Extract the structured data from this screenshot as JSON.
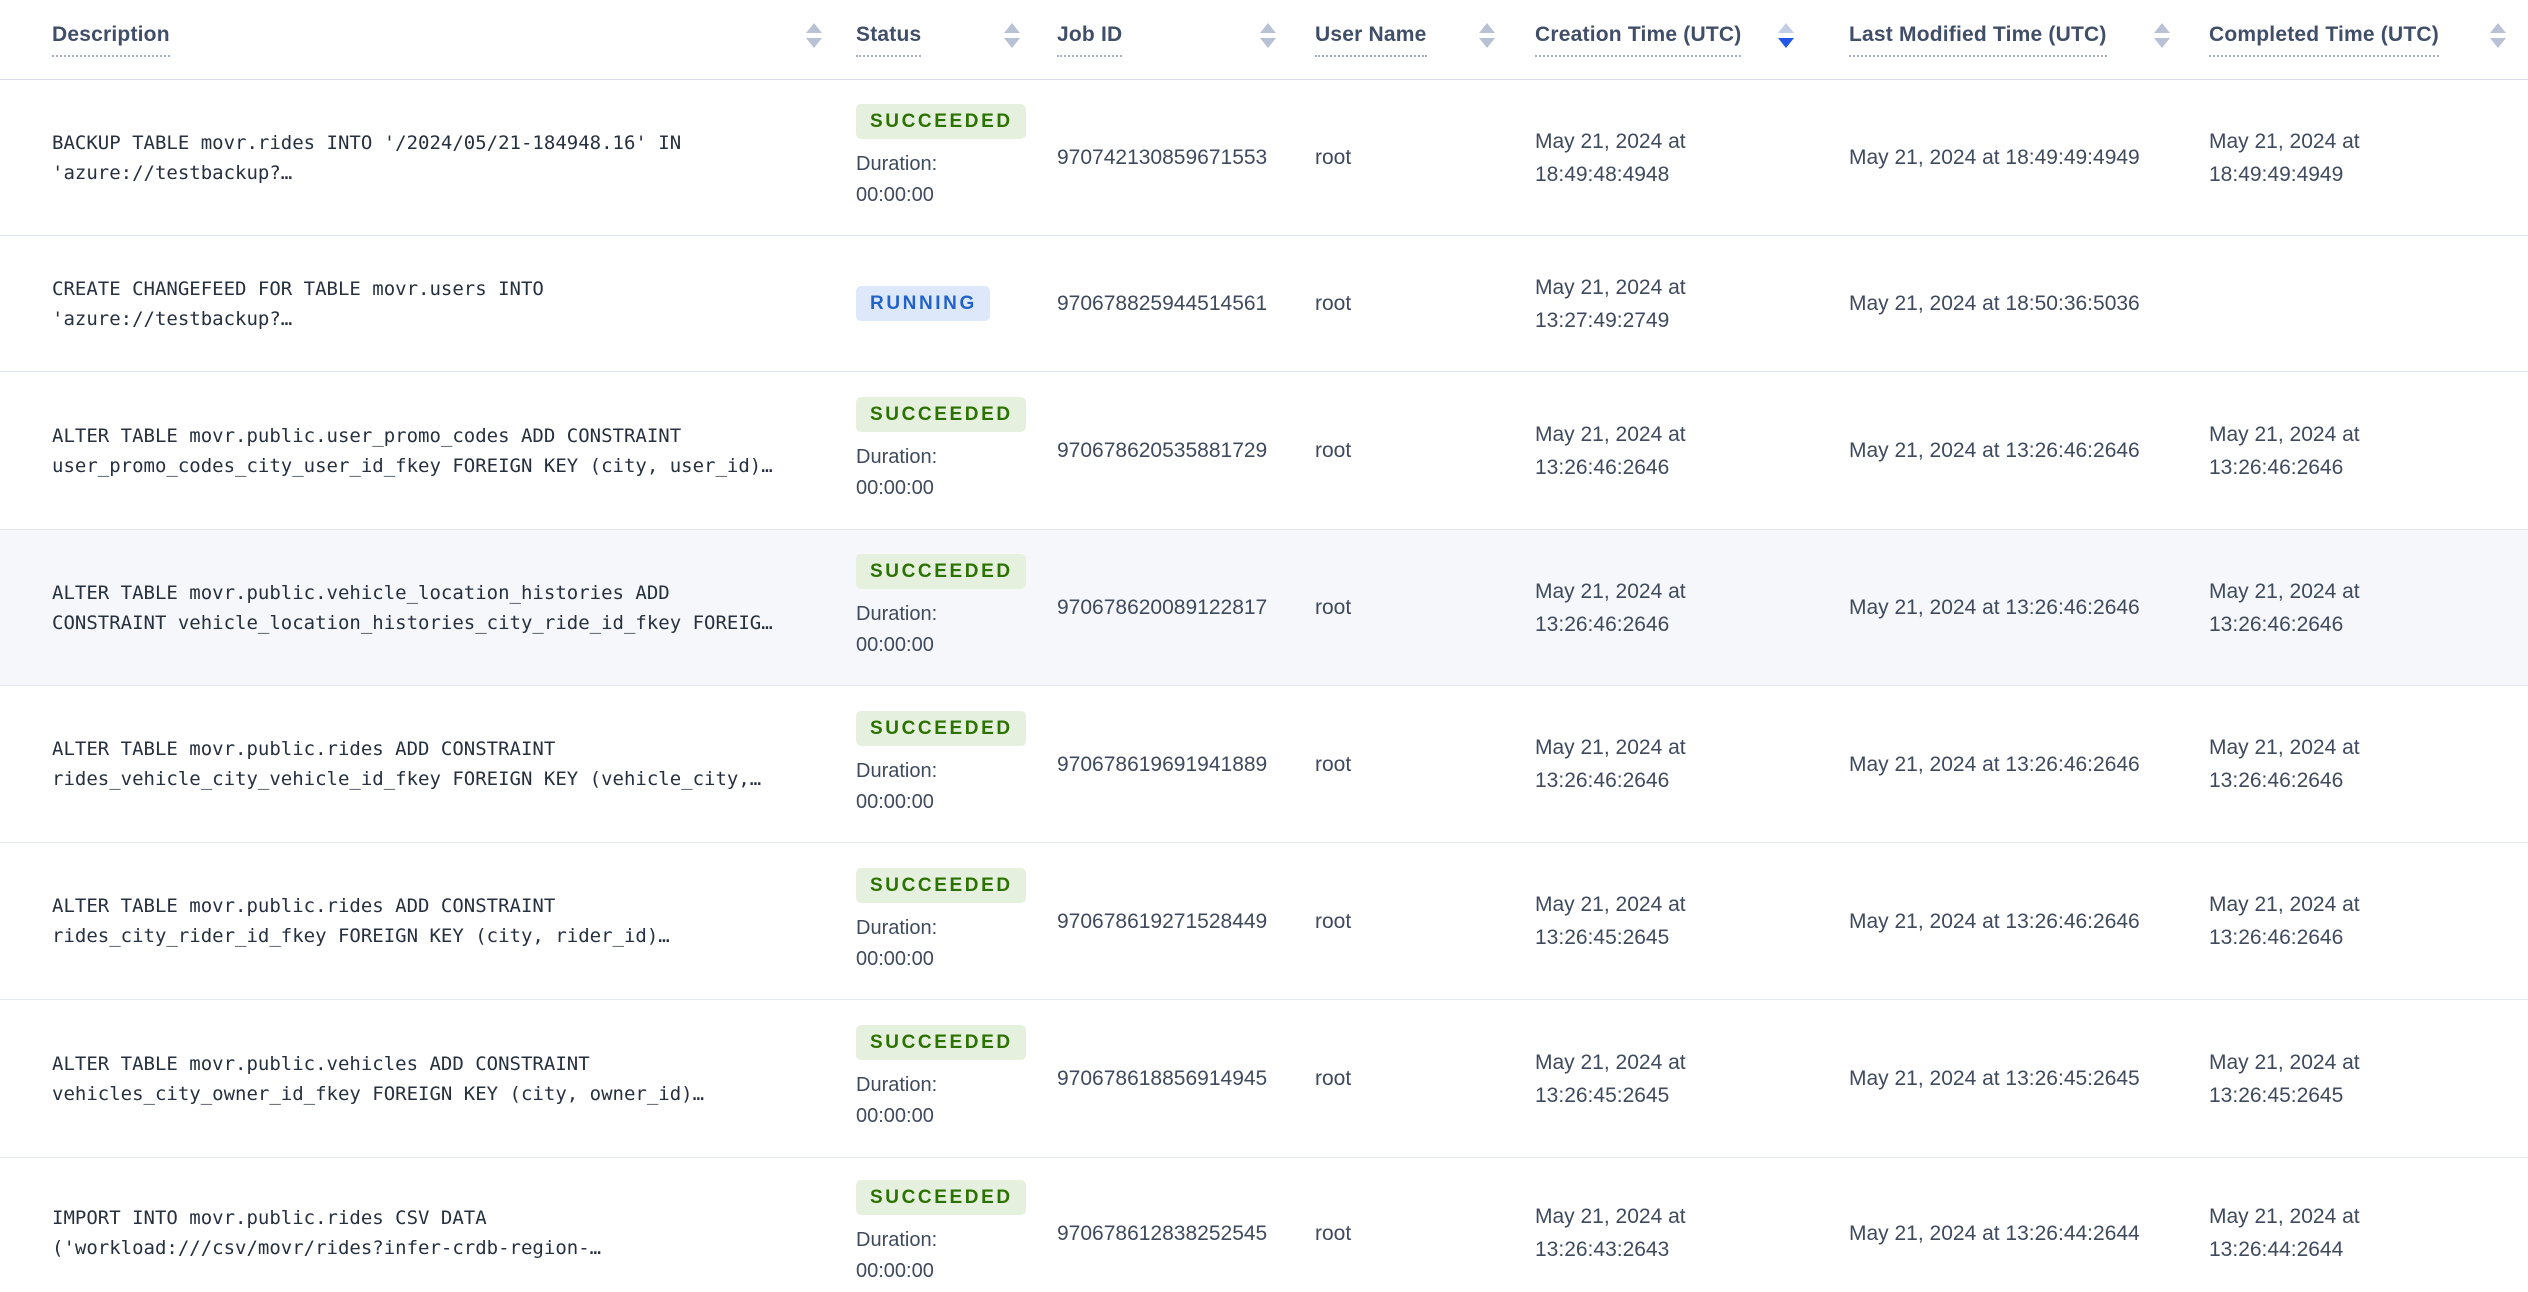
{
  "colors": {
    "header-text": "#414e68",
    "body-text": "#3f4a5d",
    "mono-text": "#26303e",
    "row-highlight": "#f5f7fa",
    "separator": "#e3e8f0",
    "header-border": "#d5dce6",
    "dotted-underline": "#a6b0c3",
    "sort-arrow": "#b9c1d4",
    "sort-arrow-active": "#2457e5",
    "sort-arrow-active-up": "#c3cde6",
    "badge-succeeded-bg": "#e5f1de",
    "badge-succeeded-text": "#2c7200",
    "badge-running-bg": "#dde9fb",
    "badge-running-text": "#2363c9"
  },
  "table": {
    "columns": [
      {
        "label": "Description",
        "sort_active": false
      },
      {
        "label": "Status",
        "sort_active": false
      },
      {
        "label": "Job ID",
        "sort_active": false
      },
      {
        "label": "User Name",
        "sort_active": false
      },
      {
        "label": "Creation Time (UTC)",
        "sort_active": true,
        "sort_direction": "desc"
      },
      {
        "label": "Last Modified Time (UTC)",
        "sort_active": false
      },
      {
        "label": "Completed Time (UTC)",
        "sort_active": false
      }
    ],
    "rows": [
      {
        "description_line1": "BACKUP TABLE movr.rides INTO '/2024/05/21-184948.16' IN",
        "description_line2": "'azure://testbackup?…",
        "status": "SUCCEEDED",
        "duration_label": "Duration:",
        "duration_value": "00:00:00",
        "job_id": "970742130859671553",
        "user_name": "root",
        "creation_time_line1": "May 21, 2024 at",
        "creation_time_line2": "18:49:48:4948",
        "last_modified_time": "May 21, 2024 at 18:49:49:4949",
        "completed_time_line1": "May 21, 2024 at",
        "completed_time_line2": "18:49:49:4949",
        "highlighted": false
      },
      {
        "description_line1": "CREATE CHANGEFEED FOR TABLE movr.users INTO",
        "description_line2": "'azure://testbackup?…",
        "status": "RUNNING",
        "duration_label": "",
        "duration_value": "",
        "job_id": "970678825944514561",
        "user_name": "root",
        "creation_time_line1": "May 21, 2024 at",
        "creation_time_line2": "13:27:49:2749",
        "last_modified_time": "May 21, 2024 at 18:50:36:5036",
        "completed_time_line1": "",
        "completed_time_line2": "",
        "highlighted": false
      },
      {
        "description_line1": "ALTER TABLE movr.public.user_promo_codes ADD CONSTRAINT",
        "description_line2": "user_promo_codes_city_user_id_fkey FOREIGN KEY (city, user_id)…",
        "status": "SUCCEEDED",
        "duration_label": "Duration:",
        "duration_value": "00:00:00",
        "job_id": "970678620535881729",
        "user_name": "root",
        "creation_time_line1": "May 21, 2024 at",
        "creation_time_line2": "13:26:46:2646",
        "last_modified_time": "May 21, 2024 at 13:26:46:2646",
        "completed_time_line1": "May 21, 2024 at",
        "completed_time_line2": "13:26:46:2646",
        "highlighted": false
      },
      {
        "description_line1": "ALTER TABLE movr.public.vehicle_location_histories ADD",
        "description_line2": "CONSTRAINT vehicle_location_histories_city_ride_id_fkey FOREIG…",
        "status": "SUCCEEDED",
        "duration_label": "Duration:",
        "duration_value": "00:00:00",
        "job_id": "970678620089122817",
        "user_name": "root",
        "creation_time_line1": "May 21, 2024 at",
        "creation_time_line2": "13:26:46:2646",
        "last_modified_time": "May 21, 2024 at 13:26:46:2646",
        "completed_time_line1": "May 21, 2024 at",
        "completed_time_line2": "13:26:46:2646",
        "highlighted": true
      },
      {
        "description_line1": "ALTER TABLE movr.public.rides ADD CONSTRAINT",
        "description_line2": "rides_vehicle_city_vehicle_id_fkey FOREIGN KEY (vehicle_city,…",
        "status": "SUCCEEDED",
        "duration_label": "Duration:",
        "duration_value": "00:00:00",
        "job_id": "970678619691941889",
        "user_name": "root",
        "creation_time_line1": "May 21, 2024 at",
        "creation_time_line2": "13:26:46:2646",
        "last_modified_time": "May 21, 2024 at 13:26:46:2646",
        "completed_time_line1": "May 21, 2024 at",
        "completed_time_line2": "13:26:46:2646",
        "highlighted": false
      },
      {
        "description_line1": "ALTER TABLE movr.public.rides ADD CONSTRAINT",
        "description_line2": "rides_city_rider_id_fkey FOREIGN KEY (city, rider_id)…",
        "status": "SUCCEEDED",
        "duration_label": "Duration:",
        "duration_value": "00:00:00",
        "job_id": "970678619271528449",
        "user_name": "root",
        "creation_time_line1": "May 21, 2024 at",
        "creation_time_line2": "13:26:45:2645",
        "last_modified_time": "May 21, 2024 at 13:26:46:2646",
        "completed_time_line1": "May 21, 2024 at",
        "completed_time_line2": "13:26:46:2646",
        "highlighted": false
      },
      {
        "description_line1": "ALTER TABLE movr.public.vehicles ADD CONSTRAINT",
        "description_line2": "vehicles_city_owner_id_fkey FOREIGN KEY (city, owner_id)…",
        "status": "SUCCEEDED",
        "duration_label": "Duration:",
        "duration_value": "00:00:00",
        "job_id": "970678618856914945",
        "user_name": "root",
        "creation_time_line1": "May 21, 2024 at",
        "creation_time_line2": "13:26:45:2645",
        "last_modified_time": "May 21, 2024 at 13:26:45:2645",
        "completed_time_line1": "May 21, 2024 at",
        "completed_time_line2": "13:26:45:2645",
        "highlighted": false
      },
      {
        "description_line1": "IMPORT INTO movr.public.rides CSV DATA",
        "description_line2": "('workload:///csv/movr/rides?infer-crdb-region-…",
        "status": "SUCCEEDED",
        "duration_label": "Duration:",
        "duration_value": "00:00:00",
        "job_id": "970678612838252545",
        "user_name": "root",
        "creation_time_line1": "May 21, 2024 at",
        "creation_time_line2": "13:26:43:2643",
        "last_modified_time": "May 21, 2024 at 13:26:44:2644",
        "completed_time_line1": "May 21, 2024 at",
        "completed_time_line2": "13:26:44:2644",
        "highlighted": false
      }
    ]
  }
}
